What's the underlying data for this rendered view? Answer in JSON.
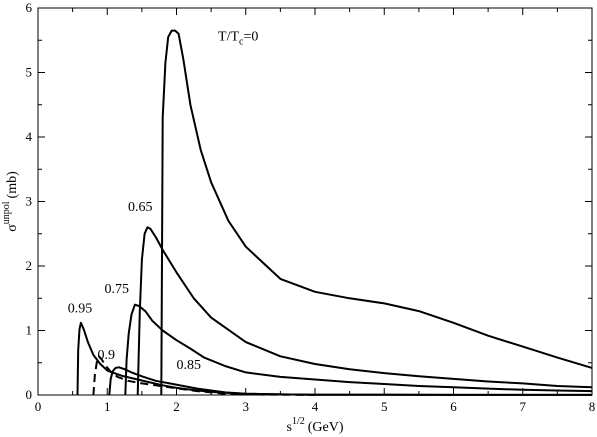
{
  "chart_data": {
    "type": "line",
    "xlabel": {
      "base": "s",
      "sup": "1/2",
      "unit": "(GeV)"
    },
    "ylabel": {
      "base": "σ",
      "sup": "unpol",
      "unit": "(mb)"
    },
    "xlim": [
      0,
      8
    ],
    "ylim": [
      0,
      6
    ],
    "xticks": [
      0,
      1,
      2,
      3,
      4,
      5,
      6,
      7,
      8
    ],
    "yticks": [
      0,
      1,
      2,
      3,
      4,
      5,
      6
    ],
    "grid": false,
    "annotations": [
      {
        "text": "T/T",
        "sub": "c",
        "tail": "=0",
        "x": 2.6,
        "y": 5.5
      },
      {
        "text": "0.65",
        "x": 1.3,
        "y": 2.85
      },
      {
        "text": "0.75",
        "x": 0.96,
        "y": 1.58
      },
      {
        "text": "0.95",
        "x": 0.43,
        "y": 1.28
      },
      {
        "text": "0.9",
        "x": 0.86,
        "y": 0.56
      },
      {
        "text": "0.85",
        "x": 2.0,
        "y": 0.4
      }
    ],
    "series": [
      {
        "style": "solid",
        "x": [
          1.78,
          1.8,
          1.84,
          1.88,
          1.93,
          1.98,
          2.03,
          2.1,
          2.2,
          2.35,
          2.5,
          2.75,
          3.0,
          3.5,
          4.0,
          4.5,
          5.0,
          5.5,
          6.0,
          6.5,
          7.0,
          7.5,
          8.0
        ],
        "y": [
          0,
          4.3,
          5.15,
          5.55,
          5.65,
          5.65,
          5.6,
          5.2,
          4.5,
          3.8,
          3.3,
          2.7,
          2.3,
          1.8,
          1.6,
          1.5,
          1.42,
          1.3,
          1.12,
          0.92,
          0.75,
          0.58,
          0.42
        ]
      },
      {
        "style": "solid",
        "x": [
          1.44,
          1.47,
          1.5,
          1.54,
          1.58,
          1.62,
          1.7,
          1.8,
          2.0,
          2.25,
          2.5,
          3.0,
          3.5,
          4.0,
          4.5,
          5.0,
          5.5,
          6.0,
          6.5,
          7.0,
          7.5,
          8.0
        ],
        "y": [
          0,
          1.3,
          2.1,
          2.5,
          2.6,
          2.58,
          2.45,
          2.25,
          1.9,
          1.5,
          1.2,
          0.82,
          0.6,
          0.48,
          0.4,
          0.34,
          0.29,
          0.25,
          0.21,
          0.18,
          0.14,
          0.12
        ]
      },
      {
        "style": "solid",
        "x": [
          1.26,
          1.28,
          1.31,
          1.35,
          1.4,
          1.46,
          1.55,
          1.65,
          1.8,
          2.0,
          2.2,
          2.4,
          2.7,
          3.0,
          3.5,
          4.0,
          4.5,
          5.0,
          5.5,
          6.0,
          6.5,
          7.0,
          7.5,
          8.0
        ],
        "y": [
          0,
          0.55,
          0.95,
          1.25,
          1.4,
          1.38,
          1.3,
          1.15,
          1.0,
          0.85,
          0.72,
          0.58,
          0.45,
          0.35,
          0.28,
          0.24,
          0.2,
          0.17,
          0.14,
          0.12,
          0.1,
          0.08,
          0.07,
          0.06
        ]
      },
      {
        "style": "solid",
        "x": [
          0.57,
          0.58,
          0.6,
          0.62,
          0.66,
          0.72,
          0.8,
          0.9,
          1.0,
          1.2,
          1.4,
          1.6,
          1.8,
          2.0,
          2.3,
          2.6,
          3.0,
          3.5,
          4.0,
          5.0,
          6.0,
          7.0,
          8.0
        ],
        "y": [
          0,
          0.7,
          1.02,
          1.12,
          1.02,
          0.82,
          0.62,
          0.48,
          0.38,
          0.3,
          0.25,
          0.2,
          0.15,
          0.11,
          0.07,
          0.04,
          0.02,
          0.01,
          0.005,
          0.003,
          0.002,
          0.001,
          0.001
        ]
      },
      {
        "style": "dashed",
        "x": [
          0.8,
          0.82,
          0.85,
          0.88,
          0.92,
          0.98,
          1.05,
          1.15,
          1.3,
          1.5,
          1.7,
          1.9,
          2.1,
          2.3,
          2.5,
          2.7,
          3.0,
          3.5,
          4.0
        ],
        "y": [
          0,
          0.3,
          0.52,
          0.6,
          0.55,
          0.45,
          0.36,
          0.28,
          0.22,
          0.18,
          0.15,
          0.12,
          0.09,
          0.06,
          0.04,
          0.02,
          0.01,
          0.005,
          0.002
        ]
      },
      {
        "style": "solid",
        "x": [
          1.03,
          1.05,
          1.08,
          1.12,
          1.17,
          1.25,
          1.35,
          1.5,
          1.7,
          1.9,
          2.1,
          2.3,
          2.5,
          2.7,
          3.0,
          3.5,
          4.0,
          5.0,
          6.0,
          7.0,
          8.0
        ],
        "y": [
          0,
          0.25,
          0.37,
          0.42,
          0.43,
          0.4,
          0.35,
          0.29,
          0.22,
          0.18,
          0.14,
          0.1,
          0.07,
          0.04,
          0.02,
          0.01,
          0.005,
          0.003,
          0.002,
          0.001,
          0.001
        ]
      }
    ]
  }
}
